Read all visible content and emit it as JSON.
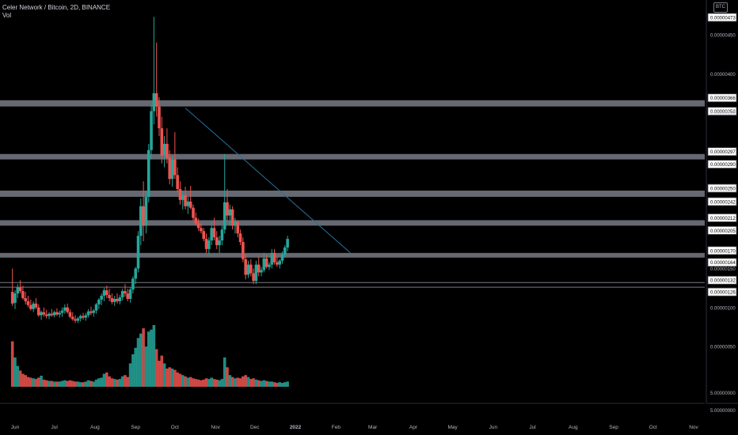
{
  "header": {
    "title": "Celer Network / Bitcoin, 2D, BINANCE",
    "volume_label": "Vol",
    "currency_badge": "BTC"
  },
  "colors": {
    "background": "#000000",
    "up": "#26a69a",
    "down": "#ef5350",
    "level_band": "#787b86",
    "trendline": "#2a6f97",
    "axis_text": "#b2b5be"
  },
  "chart_data": {
    "type": "candlestick",
    "symbol": "Celer Network / Bitcoin",
    "interval": "2D",
    "exchange": "BINANCE",
    "x_ticks": [
      "Jun",
      "Jul",
      "Aug",
      "Sep",
      "Oct",
      "Nov",
      "Dec",
      "2022",
      "Feb",
      "Mar",
      "Apr",
      "May",
      "Jun",
      "Jul",
      "Aug",
      "Sep",
      "Oct",
      "Nov"
    ],
    "x_tick_dates": [
      "2021-06-01",
      "2021-07-01",
      "2021-08-01",
      "2021-09-01",
      "2021-10-01",
      "2021-11-01",
      "2021-12-01",
      "2022-01-01",
      "2022-02-01",
      "2022-03-01",
      "2022-04-01",
      "2022-05-01",
      "2022-06-01",
      "2022-07-01",
      "2022-08-01",
      "2022-09-01",
      "2022-10-01",
      "2022-11-01"
    ],
    "price_axis": {
      "ticks": [
        "0.00000450",
        "0.00000400",
        "0.00000350",
        "0.00000150",
        "0.00000100",
        "0.00000050"
      ],
      "max_label": "0.00000473",
      "ylim": [
        4e-07,
        4.73e-06
      ]
    },
    "volume_axis_ticks": [
      "5.00000000",
      "5.00000000"
    ],
    "horizontal_levels": [
      {
        "upper": "0.00000366",
        "lower": "0.00000358"
      },
      {
        "upper": "0.00000297",
        "lower": "0.00000290"
      },
      {
        "upper": "0.00000250",
        "lower": "0.00000242"
      },
      {
        "upper": "0.00000212",
        "lower": "0.00000205"
      },
      {
        "upper": "0.00000170",
        "lower": "0.00000164"
      },
      {
        "upper": "0.00000132",
        "lower": "0.00000126"
      }
    ],
    "trendline": {
      "start": {
        "date": "2021-10-09",
        "price": 3.56e-06
      },
      "end": {
        "date": "2022-02-12",
        "price": 1.7e-06
      }
    },
    "candles": [
      {
        "date": "2021-05-30",
        "o": 1.2e-06,
        "h": 1.5e-06,
        "l": 1.02e-06,
        "c": 1.05e-06,
        "v": 70
      },
      {
        "date": "2021-06-01",
        "o": 1.06e-06,
        "h": 1.22e-06,
        "l": 9.8e-07,
        "c": 1.18e-06,
        "v": 45
      },
      {
        "date": "2021-06-03",
        "o": 1.18e-06,
        "h": 1.3e-06,
        "l": 1.12e-06,
        "c": 1.26e-06,
        "v": 32
      },
      {
        "date": "2021-06-05",
        "o": 1.26e-06,
        "h": 1.35e-06,
        "l": 1.18e-06,
        "c": 1.21e-06,
        "v": 25
      },
      {
        "date": "2021-06-07",
        "o": 1.21e-06,
        "h": 1.28e-06,
        "l": 1.1e-06,
        "c": 1.12e-06,
        "v": 20
      },
      {
        "date": "2021-06-09",
        "o": 1.12e-06,
        "h": 1.2e-06,
        "l": 1.04e-06,
        "c": 1.08e-06,
        "v": 18
      },
      {
        "date": "2021-06-11",
        "o": 1.08e-06,
        "h": 1.15e-06,
        "l": 1e-06,
        "c": 1.03e-06,
        "v": 15
      },
      {
        "date": "2021-06-13",
        "o": 1.03e-06,
        "h": 1.1e-06,
        "l": 9.6e-07,
        "c": 9.8e-07,
        "v": 14
      },
      {
        "date": "2021-06-15",
        "o": 9.8e-07,
        "h": 1.08e-06,
        "l": 9.4e-07,
        "c": 1.05e-06,
        "v": 13
      },
      {
        "date": "2021-06-17",
        "o": 1.05e-06,
        "h": 1.12e-06,
        "l": 9.8e-07,
        "c": 1e-06,
        "v": 12
      },
      {
        "date": "2021-06-19",
        "o": 1e-06,
        "h": 1.04e-06,
        "l": 8.8e-07,
        "c": 9e-07,
        "v": 14
      },
      {
        "date": "2021-06-21",
        "o": 9e-07,
        "h": 9.6e-07,
        "l": 8.4e-07,
        "c": 9.4e-07,
        "v": 17
      },
      {
        "date": "2021-06-23",
        "o": 9.4e-07,
        "h": 1e-06,
        "l": 8.8e-07,
        "c": 9.1e-07,
        "v": 11
      },
      {
        "date": "2021-06-25",
        "o": 9.1e-07,
        "h": 9.7e-07,
        "l": 8.6e-07,
        "c": 8.9e-07,
        "v": 10
      },
      {
        "date": "2021-06-27",
        "o": 8.9e-07,
        "h": 9.4e-07,
        "l": 8.5e-07,
        "c": 9.2e-07,
        "v": 9
      },
      {
        "date": "2021-06-29",
        "o": 9.2e-07,
        "h": 9.8e-07,
        "l": 8.8e-07,
        "c": 9e-07,
        "v": 9
      },
      {
        "date": "2021-07-01",
        "o": 9e-07,
        "h": 9.6e-07,
        "l": 8.7e-07,
        "c": 9.4e-07,
        "v": 8
      },
      {
        "date": "2021-07-03",
        "o": 9.4e-07,
        "h": 9.9e-07,
        "l": 8.9e-07,
        "c": 9.1e-07,
        "v": 8
      },
      {
        "date": "2021-07-05",
        "o": 9.1e-07,
        "h": 9.6e-07,
        "l": 8.7e-07,
        "c": 9.3e-07,
        "v": 8
      },
      {
        "date": "2021-07-07",
        "o": 9.3e-07,
        "h": 1e-06,
        "l": 8.8e-07,
        "c": 9.6e-07,
        "v": 9
      },
      {
        "date": "2021-07-09",
        "o": 9.6e-07,
        "h": 1.04e-06,
        "l": 9.2e-07,
        "c": 1e-06,
        "v": 10
      },
      {
        "date": "2021-07-11",
        "o": 1e-06,
        "h": 1.05e-06,
        "l": 9.2e-07,
        "c": 9.4e-07,
        "v": 9
      },
      {
        "date": "2021-07-13",
        "o": 9.4e-07,
        "h": 9.8e-07,
        "l": 8.6e-07,
        "c": 8.8e-07,
        "v": 10
      },
      {
        "date": "2021-07-15",
        "o": 8.8e-07,
        "h": 9.4e-07,
        "l": 8.3e-07,
        "c": 8.5e-07,
        "v": 9
      },
      {
        "date": "2021-07-17",
        "o": 8.5e-07,
        "h": 9e-07,
        "l": 8e-07,
        "c": 8.3e-07,
        "v": 8
      },
      {
        "date": "2021-07-19",
        "o": 8.3e-07,
        "h": 8.8e-07,
        "l": 8e-07,
        "c": 8.6e-07,
        "v": 8
      },
      {
        "date": "2021-07-21",
        "o": 8.6e-07,
        "h": 9.1e-07,
        "l": 8.2e-07,
        "c": 8.9e-07,
        "v": 7
      },
      {
        "date": "2021-07-23",
        "o": 8.9e-07,
        "h": 9.3e-07,
        "l": 8.4e-07,
        "c": 8.7e-07,
        "v": 7
      },
      {
        "date": "2021-07-25",
        "o": 8.7e-07,
        "h": 9.3e-07,
        "l": 8.3e-07,
        "c": 9e-07,
        "v": 8
      },
      {
        "date": "2021-07-27",
        "o": 9e-07,
        "h": 9.8e-07,
        "l": 8.7e-07,
        "c": 9.5e-07,
        "v": 10
      },
      {
        "date": "2021-07-29",
        "o": 9.5e-07,
        "h": 1.01e-06,
        "l": 9e-07,
        "c": 9.3e-07,
        "v": 9
      },
      {
        "date": "2021-07-31",
        "o": 9.3e-07,
        "h": 9.8e-07,
        "l": 8.8e-07,
        "c": 9.6e-07,
        "v": 8
      },
      {
        "date": "2021-08-02",
        "o": 9.6e-07,
        "h": 1.06e-06,
        "l": 9.2e-07,
        "c": 1.04e-06,
        "v": 11
      },
      {
        "date": "2021-08-04",
        "o": 1.04e-06,
        "h": 1.12e-06,
        "l": 9.8e-07,
        "c": 1.1e-06,
        "v": 13
      },
      {
        "date": "2021-08-06",
        "o": 1.1e-06,
        "h": 1.18e-06,
        "l": 1.03e-06,
        "c": 1.15e-06,
        "v": 14
      },
      {
        "date": "2021-08-08",
        "o": 1.15e-06,
        "h": 1.25e-06,
        "l": 1.08e-06,
        "c": 1.22e-06,
        "v": 20
      },
      {
        "date": "2021-08-10",
        "o": 1.22e-06,
        "h": 1.28e-06,
        "l": 1.12e-06,
        "c": 1.16e-06,
        "v": 22
      },
      {
        "date": "2021-08-12",
        "o": 1.16e-06,
        "h": 1.24e-06,
        "l": 1.08e-06,
        "c": 1.12e-06,
        "v": 16
      },
      {
        "date": "2021-08-14",
        "o": 1.12e-06,
        "h": 1.18e-06,
        "l": 1.04e-06,
        "c": 1.07e-06,
        "v": 13
      },
      {
        "date": "2021-08-16",
        "o": 1.07e-06,
        "h": 1.15e-06,
        "l": 1.02e-06,
        "c": 1.11e-06,
        "v": 12
      },
      {
        "date": "2021-08-18",
        "o": 1.11e-06,
        "h": 1.18e-06,
        "l": 1.05e-06,
        "c": 1.08e-06,
        "v": 11
      },
      {
        "date": "2021-08-20",
        "o": 1.08e-06,
        "h": 1.16e-06,
        "l": 1.04e-06,
        "c": 1.13e-06,
        "v": 12
      },
      {
        "date": "2021-08-22",
        "o": 1.13e-06,
        "h": 1.24e-06,
        "l": 1.09e-06,
        "c": 1.21e-06,
        "v": 16
      },
      {
        "date": "2021-08-24",
        "o": 1.21e-06,
        "h": 1.3e-06,
        "l": 1.14e-06,
        "c": 1.18e-06,
        "v": 18
      },
      {
        "date": "2021-08-26",
        "o": 1.18e-06,
        "h": 1.24e-06,
        "l": 1.08e-06,
        "c": 1.11e-06,
        "v": 15
      },
      {
        "date": "2021-08-28",
        "o": 1.11e-06,
        "h": 1.26e-06,
        "l": 1.06e-06,
        "c": 1.23e-06,
        "v": 36
      },
      {
        "date": "2021-08-30",
        "o": 1.23e-06,
        "h": 1.4e-06,
        "l": 1.18e-06,
        "c": 1.37e-06,
        "v": 50
      },
      {
        "date": "2021-09-01",
        "o": 1.37e-06,
        "h": 1.52e-06,
        "l": 1.3e-06,
        "c": 1.5e-06,
        "v": 60
      },
      {
        "date": "2021-09-03",
        "o": 1.5e-06,
        "h": 1.98e-06,
        "l": 1.45e-06,
        "c": 1.92e-06,
        "v": 75
      },
      {
        "date": "2021-09-05",
        "o": 1.92e-06,
        "h": 2.4e-06,
        "l": 1.8e-06,
        "c": 2.3e-06,
        "v": 82
      },
      {
        "date": "2021-09-07",
        "o": 2.3e-06,
        "h": 2.62e-06,
        "l": 1.85e-06,
        "c": 2.05e-06,
        "v": 90
      },
      {
        "date": "2021-09-09",
        "o": 2.05e-06,
        "h": 2.5e-06,
        "l": 1.95e-06,
        "c": 2.42e-06,
        "v": 62
      },
      {
        "date": "2021-09-11",
        "o": 2.42e-06,
        "h": 3.1e-06,
        "l": 2.35e-06,
        "c": 3.02e-06,
        "v": 85
      },
      {
        "date": "2021-09-13",
        "o": 3.02e-06,
        "h": 3.6e-06,
        "l": 2.9e-06,
        "c": 3.52e-06,
        "v": 88
      },
      {
        "date": "2021-09-15",
        "o": 3.52e-06,
        "h": 4.73e-06,
        "l": 3.35e-06,
        "c": 3.75e-06,
        "v": 95
      },
      {
        "date": "2021-09-17",
        "o": 3.75e-06,
        "h": 4.4e-06,
        "l": 3.45e-06,
        "c": 3.58e-06,
        "v": 58
      },
      {
        "date": "2021-09-19",
        "o": 3.58e-06,
        "h": 3.7e-06,
        "l": 3.2e-06,
        "c": 3.3e-06,
        "v": 40
      },
      {
        "date": "2021-09-21",
        "o": 3.3e-06,
        "h": 3.45e-06,
        "l": 2.85e-06,
        "c": 2.95e-06,
        "v": 48
      },
      {
        "date": "2021-09-23",
        "o": 2.95e-06,
        "h": 3.2e-06,
        "l": 2.8e-06,
        "c": 3.1e-06,
        "v": 36
      },
      {
        "date": "2021-09-25",
        "o": 3.1e-06,
        "h": 3.3e-06,
        "l": 2.85e-06,
        "c": 2.92e-06,
        "v": 28
      },
      {
        "date": "2021-09-27",
        "o": 2.92e-06,
        "h": 3.02e-06,
        "l": 2.58e-06,
        "c": 2.65e-06,
        "v": 30
      },
      {
        "date": "2021-09-29",
        "o": 2.65e-06,
        "h": 2.95e-06,
        "l": 2.55e-06,
        "c": 2.9e-06,
        "v": 28
      },
      {
        "date": "2021-10-01",
        "o": 2.9e-06,
        "h": 3.25e-06,
        "l": 2.65e-06,
        "c": 2.7e-06,
        "v": 26
      },
      {
        "date": "2021-10-03",
        "o": 2.7e-06,
        "h": 2.8e-06,
        "l": 2.48e-06,
        "c": 2.52e-06,
        "v": 22
      },
      {
        "date": "2021-10-05",
        "o": 2.52e-06,
        "h": 2.62e-06,
        "l": 2.32e-06,
        "c": 2.38e-06,
        "v": 20
      },
      {
        "date": "2021-10-07",
        "o": 2.38e-06,
        "h": 2.5e-06,
        "l": 2.26e-06,
        "c": 2.44e-06,
        "v": 18
      },
      {
        "date": "2021-10-09",
        "o": 2.44e-06,
        "h": 2.55e-06,
        "l": 2.26e-06,
        "c": 2.3e-06,
        "v": 16
      },
      {
        "date": "2021-10-11",
        "o": 2.3e-06,
        "h": 2.42e-06,
        "l": 2.2e-06,
        "c": 2.36e-06,
        "v": 14
      },
      {
        "date": "2021-10-13",
        "o": 2.36e-06,
        "h": 2.56e-06,
        "l": 2.26e-06,
        "c": 2.28e-06,
        "v": 15
      },
      {
        "date": "2021-10-15",
        "o": 2.28e-06,
        "h": 2.32e-06,
        "l": 2.12e-06,
        "c": 2.15e-06,
        "v": 13
      },
      {
        "date": "2021-10-17",
        "o": 2.15e-06,
        "h": 2.22e-06,
        "l": 2.05e-06,
        "c": 2.08e-06,
        "v": 12
      },
      {
        "date": "2021-10-19",
        "o": 2.08e-06,
        "h": 2.14e-06,
        "l": 1.98e-06,
        "c": 2.02e-06,
        "v": 11
      },
      {
        "date": "2021-10-21",
        "o": 2.02e-06,
        "h": 2.08e-06,
        "l": 1.95e-06,
        "c": 1.98e-06,
        "v": 10
      },
      {
        "date": "2021-10-23",
        "o": 1.98e-06,
        "h": 2.02e-06,
        "l": 1.85e-06,
        "c": 1.88e-06,
        "v": 11
      },
      {
        "date": "2021-10-25",
        "o": 1.88e-06,
        "h": 1.95e-06,
        "l": 1.7e-06,
        "c": 1.75e-06,
        "v": 13
      },
      {
        "date": "2021-10-27",
        "o": 1.75e-06,
        "h": 1.9e-06,
        "l": 1.68e-06,
        "c": 1.86e-06,
        "v": 12
      },
      {
        "date": "2021-10-29",
        "o": 1.86e-06,
        "h": 2.1e-06,
        "l": 1.8e-06,
        "c": 2.02e-06,
        "v": 14
      },
      {
        "date": "2021-10-31",
        "o": 2.02e-06,
        "h": 2.15e-06,
        "l": 1.86e-06,
        "c": 1.9e-06,
        "v": 12
      },
      {
        "date": "2021-11-02",
        "o": 1.9e-06,
        "h": 1.98e-06,
        "l": 1.75e-06,
        "c": 1.8e-06,
        "v": 11
      },
      {
        "date": "2021-11-04",
        "o": 1.8e-06,
        "h": 1.92e-06,
        "l": 1.7e-06,
        "c": 1.86e-06,
        "v": 10
      },
      {
        "date": "2021-11-06",
        "o": 1.86e-06,
        "h": 2.05e-06,
        "l": 1.8e-06,
        "c": 2e-06,
        "v": 12
      },
      {
        "date": "2021-11-08",
        "o": 2e-06,
        "h": 2.97e-06,
        "l": 1.95e-06,
        "c": 2.35e-06,
        "v": 45
      },
      {
        "date": "2021-11-10",
        "o": 2.35e-06,
        "h": 2.52e-06,
        "l": 2.1e-06,
        "c": 2.18e-06,
        "v": 30
      },
      {
        "date": "2021-11-12",
        "o": 2.18e-06,
        "h": 2.32e-06,
        "l": 2.05e-06,
        "c": 2.26e-06,
        "v": 18
      },
      {
        "date": "2021-11-14",
        "o": 2.26e-06,
        "h": 2.3e-06,
        "l": 2e-06,
        "c": 2.05e-06,
        "v": 15
      },
      {
        "date": "2021-11-16",
        "o": 2.05e-06,
        "h": 2.15e-06,
        "l": 1.95e-06,
        "c": 2.1e-06,
        "v": 13
      },
      {
        "date": "2021-11-18",
        "o": 2.1e-06,
        "h": 2.12e-06,
        "l": 1.9e-06,
        "c": 1.95e-06,
        "v": 14
      },
      {
        "date": "2021-11-20",
        "o": 1.95e-06,
        "h": 2e-06,
        "l": 1.8e-06,
        "c": 1.84e-06,
        "v": 13
      },
      {
        "date": "2021-11-22",
        "o": 1.84e-06,
        "h": 1.9e-06,
        "l": 1.58e-06,
        "c": 1.62e-06,
        "v": 16
      },
      {
        "date": "2021-11-24",
        "o": 1.62e-06,
        "h": 1.68e-06,
        "l": 1.36e-06,
        "c": 1.42e-06,
        "v": 18
      },
      {
        "date": "2021-11-26",
        "o": 1.42e-06,
        "h": 1.6e-06,
        "l": 1.38e-06,
        "c": 1.55e-06,
        "v": 15
      },
      {
        "date": "2021-11-28",
        "o": 1.55e-06,
        "h": 1.62e-06,
        "l": 1.4e-06,
        "c": 1.44e-06,
        "v": 12
      },
      {
        "date": "2021-11-30",
        "o": 1.44e-06,
        "h": 1.5e-06,
        "l": 1.3e-06,
        "c": 1.34e-06,
        "v": 13
      },
      {
        "date": "2021-12-02",
        "o": 1.34e-06,
        "h": 1.6e-06,
        "l": 1.3e-06,
        "c": 1.55e-06,
        "v": 11
      },
      {
        "date": "2021-12-04",
        "o": 1.55e-06,
        "h": 1.65e-06,
        "l": 1.4e-06,
        "c": 1.45e-06,
        "v": 10
      },
      {
        "date": "2021-12-06",
        "o": 1.45e-06,
        "h": 1.52e-06,
        "l": 1.4e-06,
        "c": 1.48e-06,
        "v": 9
      },
      {
        "date": "2021-12-08",
        "o": 1.48e-06,
        "h": 1.7e-06,
        "l": 1.45e-06,
        "c": 1.63e-06,
        "v": 10
      },
      {
        "date": "2021-12-10",
        "o": 1.63e-06,
        "h": 1.68e-06,
        "l": 1.5e-06,
        "c": 1.52e-06,
        "v": 9
      },
      {
        "date": "2021-12-12",
        "o": 1.52e-06,
        "h": 1.58e-06,
        "l": 1.48e-06,
        "c": 1.55e-06,
        "v": 8
      },
      {
        "date": "2021-12-14",
        "o": 1.55e-06,
        "h": 1.75e-06,
        "l": 1.5e-06,
        "c": 1.7e-06,
        "v": 8
      },
      {
        "date": "2021-12-16",
        "o": 1.7e-06,
        "h": 1.75e-06,
        "l": 1.55e-06,
        "c": 1.58e-06,
        "v": 7
      },
      {
        "date": "2021-12-18",
        "o": 1.58e-06,
        "h": 1.65e-06,
        "l": 1.52e-06,
        "c": 1.55e-06,
        "v": 6
      },
      {
        "date": "2021-12-20",
        "o": 1.55e-06,
        "h": 1.62e-06,
        "l": 1.5e-06,
        "c": 1.6e-06,
        "v": 7
      },
      {
        "date": "2021-12-22",
        "o": 1.6e-06,
        "h": 1.72e-06,
        "l": 1.56e-06,
        "c": 1.68e-06,
        "v": 6
      },
      {
        "date": "2021-12-24",
        "o": 1.68e-06,
        "h": 1.8e-06,
        "l": 1.64e-06,
        "c": 1.77e-06,
        "v": 7
      },
      {
        "date": "2021-12-26",
        "o": 1.77e-06,
        "h": 1.92e-06,
        "l": 1.72e-06,
        "c": 1.88e-06,
        "v": 8
      }
    ]
  }
}
